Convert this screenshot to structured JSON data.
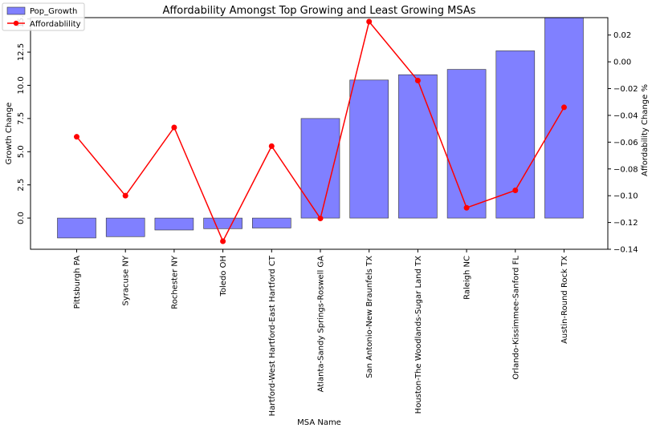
{
  "chart_data": {
    "type": "bar",
    "title": "Affordability Amongst Top Growing and Least Growing MSAs",
    "xlabel": "MSA Name",
    "ylabel_left": "Growth Change",
    "ylabel_right": "Affordability Change %",
    "categories": [
      "Pittsburgh PA",
      "Syracuse NY",
      "Rochester NY",
      "Toledo OH",
      "Hartford-West Hartford-East Hartford CT",
      "Atlanta-Sandy Springs-Roswell GA",
      "San Antonio-New Braunfels TX",
      "Houston-The Woodlands-Sugar Land TX",
      "Raleigh NC",
      "Orlando-Kissimmee-Sanford FL",
      "Austin-Round Rock TX"
    ],
    "series": [
      {
        "name": "Pop_Growth",
        "axis": "left",
        "type": "bar",
        "color": "#8080ff",
        "values": [
          -1.5,
          -1.4,
          -0.9,
          -0.8,
          -0.75,
          7.5,
          10.4,
          10.8,
          11.2,
          12.6,
          15.1
        ]
      },
      {
        "name": "Affordablility",
        "axis": "right",
        "type": "line",
        "color": "#ff0000",
        "values": [
          -0.056,
          -0.1,
          -0.049,
          -0.134,
          -0.063,
          -0.117,
          0.03,
          -0.014,
          -0.109,
          -0.096,
          -0.034
        ]
      }
    ],
    "ylim_left": [
      -2.35,
      15.1
    ],
    "ylim_right": [
      -0.14,
      0.033
    ],
    "yticks_left": [
      "0.0",
      "2.5",
      "5.0",
      "7.5",
      "10.0",
      "12.5",
      "15.0"
    ],
    "yticks_right": [
      "0.02",
      "0.00",
      "−0.02",
      "−0.04",
      "−0.06",
      "−0.08",
      "−0.10",
      "−0.12",
      "−0.14"
    ],
    "legend_position": "top-left",
    "grid": false
  }
}
